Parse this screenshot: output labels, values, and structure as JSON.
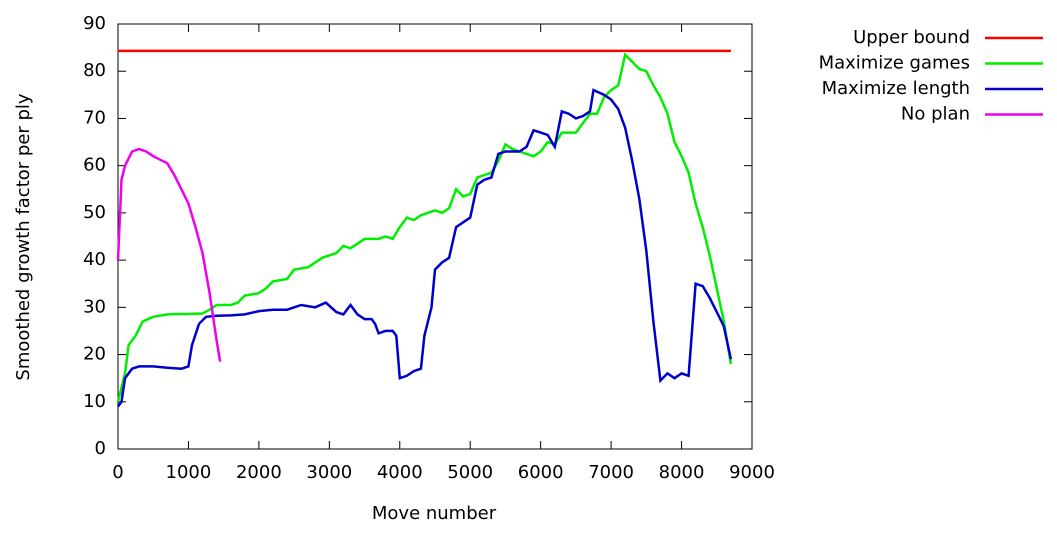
{
  "chart_data": {
    "type": "line",
    "xlabel": "Move number",
    "ylabel": "Smoothed growth factor per ply",
    "xlim": [
      0,
      9000
    ],
    "ylim": [
      0,
      90
    ],
    "xticks": [
      0,
      1000,
      2000,
      3000,
      4000,
      5000,
      6000,
      7000,
      8000,
      9000
    ],
    "yticks": [
      0,
      10,
      20,
      30,
      40,
      50,
      60,
      70,
      80,
      90
    ],
    "legend": "outside-top-right",
    "series": [
      {
        "name": "Upper bound",
        "color": "#ff0000",
        "x": [
          0,
          8700
        ],
        "values": [
          84.3,
          84.3
        ]
      },
      {
        "name": "Maximize games",
        "color": "#00ee00",
        "x": [
          0,
          100,
          150,
          250,
          350,
          500,
          700,
          1000,
          1200,
          1300,
          1400,
          1600,
          1700,
          1800,
          2000,
          2100,
          2200,
          2400,
          2500,
          2700,
          2900,
          3100,
          3200,
          3300,
          3500,
          3700,
          3800,
          3900,
          4000,
          4100,
          4200,
          4300,
          4500,
          4600,
          4700,
          4800,
          4900,
          5000,
          5100,
          5200,
          5300,
          5400,
          5500,
          5600,
          5700,
          5800,
          5900,
          6000,
          6100,
          6200,
          6300,
          6500,
          6700,
          6800,
          6900,
          7000,
          7100,
          7200,
          7300,
          7400,
          7500,
          7600,
          7700,
          7800,
          7900,
          8000,
          8100,
          8200,
          8300,
          8400,
          8500,
          8600,
          8700
        ],
        "values": [
          10,
          16,
          22,
          24,
          27,
          28,
          28.5,
          28.6,
          28.7,
          29.5,
          30.5,
          30.5,
          31,
          32.5,
          33,
          34,
          35.5,
          36,
          38,
          38.5,
          40.5,
          41.5,
          43,
          42.5,
          44.5,
          44.5,
          45,
          44.5,
          47,
          49,
          48.5,
          49.5,
          50.5,
          50,
          51,
          55,
          53.5,
          54,
          57.5,
          58,
          58.5,
          61,
          64.5,
          63.5,
          63,
          62.5,
          62,
          63,
          65,
          64.5,
          67,
          67,
          71,
          71,
          74.5,
          76,
          77,
          83.5,
          82,
          80.5,
          80,
          77,
          74.5,
          71,
          65,
          62,
          58.5,
          52,
          47,
          41,
          34,
          27,
          18
        ]
      },
      {
        "name": "Maximize length",
        "color": "#0000cc",
        "x": [
          0,
          50,
          100,
          200,
          300,
          500,
          700,
          900,
          1000,
          1050,
          1150,
          1250,
          1400,
          1600,
          1800,
          2000,
          2200,
          2400,
          2600,
          2800,
          2950,
          3100,
          3200,
          3300,
          3400,
          3500,
          3600,
          3650,
          3700,
          3800,
          3900,
          3950,
          4000,
          4100,
          4200,
          4300,
          4350,
          4450,
          4500,
          4600,
          4700,
          4800,
          4900,
          5000,
          5100,
          5200,
          5300,
          5400,
          5500,
          5700,
          5800,
          5900,
          6000,
          6100,
          6200,
          6300,
          6400,
          6500,
          6600,
          6700,
          6750,
          6900,
          7000,
          7100,
          7200,
          7300,
          7400,
          7500,
          7600,
          7700,
          7800,
          7900,
          8000,
          8100,
          8200,
          8300,
          8400,
          8500,
          8600,
          8700
        ],
        "values": [
          9,
          10,
          15,
          17,
          17.5,
          17.5,
          17.2,
          17,
          17.5,
          22,
          26.5,
          28,
          28.2,
          28.3,
          28.5,
          29.2,
          29.5,
          29.5,
          30.5,
          30,
          31,
          29,
          28.5,
          30.5,
          28.5,
          27.5,
          27.5,
          26.5,
          24.5,
          25,
          25,
          24,
          15,
          15.5,
          16.5,
          17,
          24,
          30,
          38,
          39.5,
          40.5,
          47,
          48,
          49,
          56,
          57,
          57.5,
          62.5,
          63,
          63,
          64,
          67.5,
          67,
          66.5,
          64,
          71.5,
          71,
          70,
          70.5,
          71.5,
          76,
          75,
          74,
          72,
          68,
          61,
          53,
          42,
          27,
          14.5,
          16,
          15,
          16,
          15.5,
          35,
          34.5,
          32,
          29,
          26,
          19
        ]
      },
      {
        "name": "No plan",
        "color": "#ee00ee",
        "x": [
          0,
          50,
          100,
          200,
          300,
          400,
          500,
          700,
          800,
          900,
          1000,
          1100,
          1200,
          1300,
          1400,
          1450
        ],
        "values": [
          40,
          57,
          60,
          63,
          63.5,
          63,
          62,
          60.5,
          58,
          55,
          52,
          47,
          41.5,
          33,
          23,
          18.5
        ]
      }
    ]
  }
}
